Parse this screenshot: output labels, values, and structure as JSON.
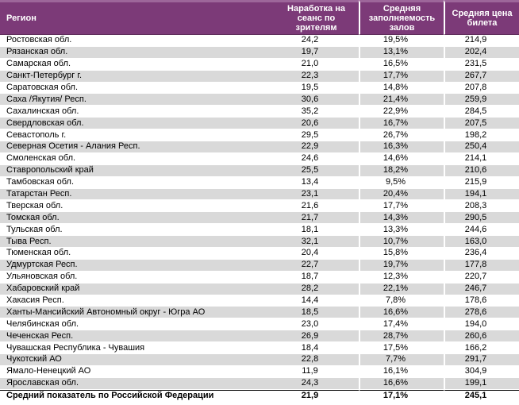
{
  "colors": {
    "header_bg": "#7c3a78",
    "header_top": "#9d669a",
    "header_bottom": "#5e2c5a",
    "header_text": "#ffffff",
    "row_alt_bg": "#d9d9d9",
    "text_color": "#000000",
    "total_divider": "#000000"
  },
  "chart_data": {
    "type": "table",
    "columns": [
      "Регион",
      "Наработка на сеанс по зрителям",
      "Средняя заполняемость залов",
      "Средняя цена билета"
    ],
    "rows": [
      [
        "Ростовская обл.",
        "24,2",
        "19,5%",
        "214,9"
      ],
      [
        "Рязанская обл.",
        "19,7",
        "13,1%",
        "202,4"
      ],
      [
        "Самарская обл.",
        "21,0",
        "16,5%",
        "231,5"
      ],
      [
        "Санкт-Петербург г.",
        "22,3",
        "17,7%",
        "267,7"
      ],
      [
        "Саратовская обл.",
        "19,5",
        "14,8%",
        "207,8"
      ],
      [
        "Саха /Якутия/ Респ.",
        "30,6",
        "21,4%",
        "259,9"
      ],
      [
        "Сахалинская обл.",
        "35,2",
        "22,9%",
        "284,5"
      ],
      [
        "Свердловская обл.",
        "20,6",
        "16,7%",
        "207,5"
      ],
      [
        "Севастополь г.",
        "29,5",
        "26,7%",
        "198,2"
      ],
      [
        "Северная Осетия - Алания Респ.",
        "22,9",
        "16,3%",
        "250,4"
      ],
      [
        "Смоленская обл.",
        "24,6",
        "14,6%",
        "214,1"
      ],
      [
        "Ставропольский край",
        "25,5",
        "18,2%",
        "210,6"
      ],
      [
        "Тамбовская обл.",
        "13,4",
        "9,5%",
        "215,9"
      ],
      [
        "Татарстан Респ.",
        "23,1",
        "20,4%",
        "194,1"
      ],
      [
        "Тверская обл.",
        "21,6",
        "17,7%",
        "208,3"
      ],
      [
        "Томская обл.",
        "21,7",
        "14,3%",
        "290,5"
      ],
      [
        "Тульская обл.",
        "18,1",
        "13,3%",
        "244,6"
      ],
      [
        "Тыва Респ.",
        "32,1",
        "10,7%",
        "163,0"
      ],
      [
        "Тюменская обл.",
        "20,4",
        "15,8%",
        "236,4"
      ],
      [
        "Удмуртская Респ.",
        "22,7",
        "19,7%",
        "177,8"
      ],
      [
        "Ульяновская обл.",
        "18,7",
        "12,3%",
        "220,7"
      ],
      [
        "Хабаровский край",
        "28,2",
        "22,1%",
        "246,7"
      ],
      [
        "Хакасия Респ.",
        "14,4",
        "7,8%",
        "178,6"
      ],
      [
        "Ханты-Мансийский Автономный округ - Югра АО",
        "18,5",
        "16,6%",
        "278,6"
      ],
      [
        "Челябинская обл.",
        "23,0",
        "17,4%",
        "194,0"
      ],
      [
        "Чеченская Респ.",
        "26,9",
        "28,7%",
        "260,6"
      ],
      [
        "Чувашская Республика - Чувашия",
        "18,4",
        "17,5%",
        "166,2"
      ],
      [
        "Чукотский АО",
        "22,8",
        "7,7%",
        "291,7"
      ],
      [
        "Ямало-Ненецкий АО",
        "11,9",
        "16,1%",
        "304,9"
      ],
      [
        "Ярославская обл.",
        "24,3",
        "16,6%",
        "199,1"
      ]
    ],
    "total_row": [
      "Средний показатель по Российской Федерации",
      "21,9",
      "17,1%",
      "245,1"
    ],
    "layout": {
      "zebra_striping": true,
      "first_data_row_background": "white",
      "total_row_bold": true
    }
  }
}
